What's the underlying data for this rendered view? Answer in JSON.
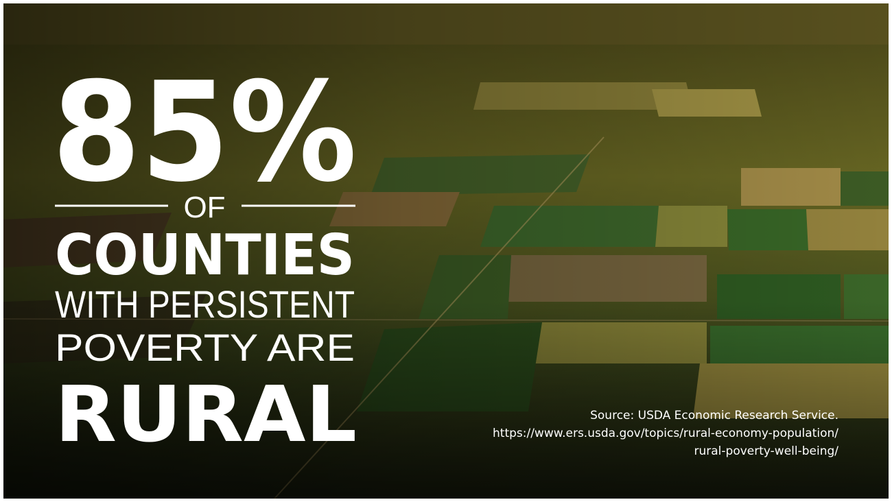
{
  "headline": {
    "figure": "85%",
    "connector": "OF",
    "subject": "COUNTIES",
    "line_1": "WITH PERSISTENT",
    "line_2": "POVERTY ARE",
    "emphasis": "RURAL"
  },
  "source": {
    "line_1": "Source: USDA Economic Research Service.",
    "line_2": "https://www.ers.usda.gov/topics/rural-economy-population/",
    "line_3": "rural-poverty-well-being/"
  }
}
